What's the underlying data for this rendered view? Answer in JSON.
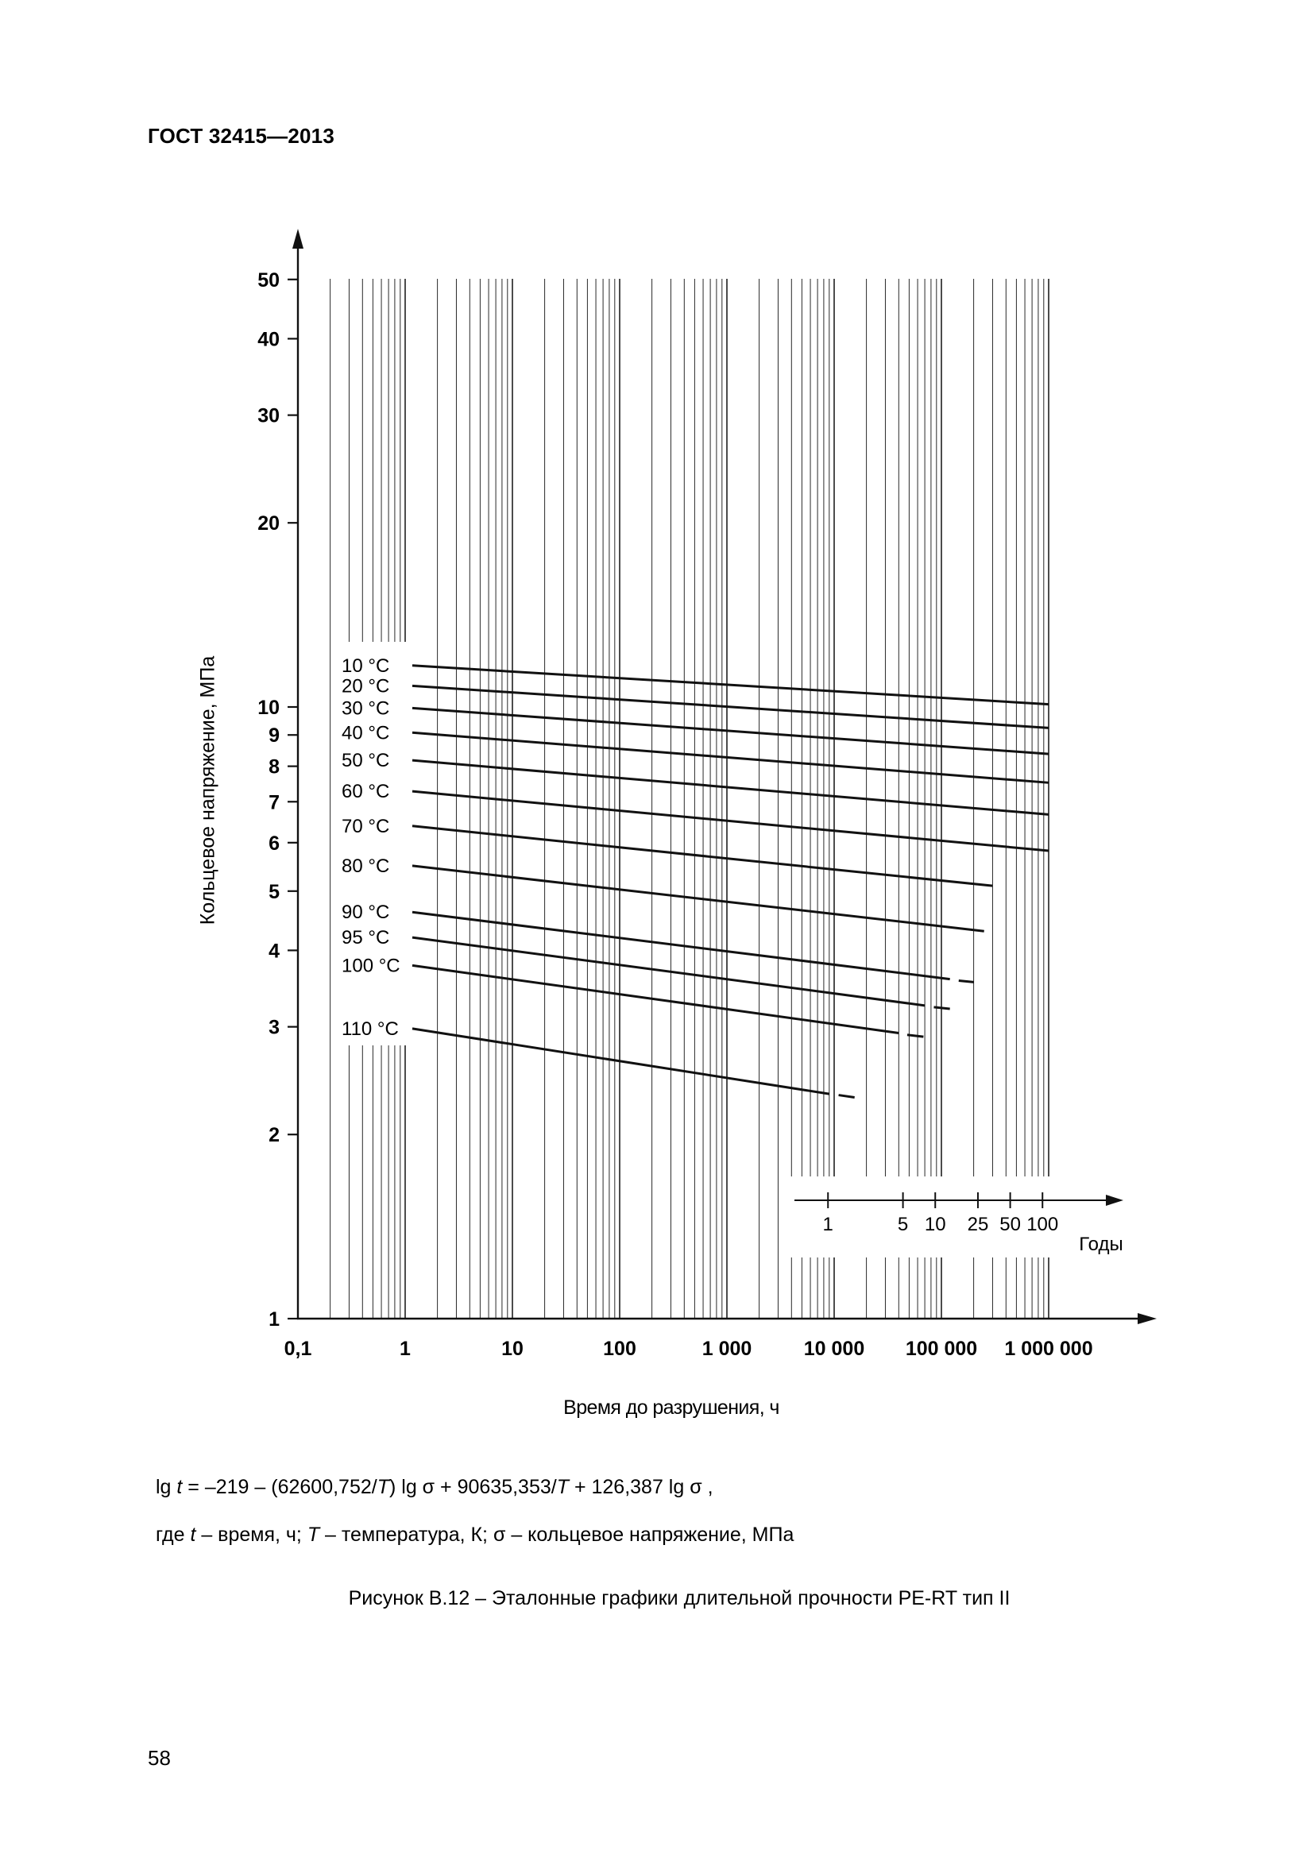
{
  "page": {
    "header": "ГОСТ 32415—2013",
    "page_number": "58",
    "formula_parts": [
      {
        "text": "lg "
      },
      {
        "text": "t",
        "italic": true
      },
      {
        "text": " = –219 – (62600,752/"
      },
      {
        "text": "T",
        "italic": true
      },
      {
        "text": ") lg σ + 90635,353/"
      },
      {
        "text": "T",
        "italic": true
      },
      {
        "text": " + 126,387 lg σ ,"
      }
    ],
    "where_parts": [
      {
        "text": "где "
      },
      {
        "text": "t",
        "italic": true
      },
      {
        "text": " – время, ч; "
      },
      {
        "text": "T",
        "italic": true
      },
      {
        "text": " – температура, К; σ – кольцевое напряжение, МПа"
      }
    ],
    "caption": "Рисунок В.12 – Эталонные графики длительной прочности PE-RT тип II"
  },
  "chart_data": {
    "type": "line",
    "title": "Эталонные графики длительной прочности PE-RT тип II",
    "x_axis": {
      "label": "Время до разрушения, ч",
      "scale": "log",
      "ticks": [
        0.1,
        1,
        10,
        100,
        1000,
        10000,
        100000,
        1000000
      ],
      "tick_labels": [
        "0,1",
        "1",
        "10",
        "100",
        "1 000",
        "10 000",
        "100 000",
        "1 000 000"
      ],
      "range": [
        0.1,
        2000000
      ]
    },
    "y_axis": {
      "label": "Кольцевое напряжение, МПа",
      "scale": "log",
      "ticks": [
        1,
        2,
        3,
        4,
        5,
        6,
        7,
        8,
        9,
        10,
        20,
        30,
        40,
        50
      ],
      "tick_labels": [
        "1",
        "2",
        "3",
        "4",
        "5",
        "6",
        "7",
        "8",
        "9",
        "10",
        "20",
        "30",
        "40",
        "50"
      ],
      "range": [
        1,
        50
      ]
    },
    "years_axis": {
      "label": "Годы",
      "ticks": [
        1,
        5,
        10,
        25,
        50,
        100
      ],
      "tick_labels": [
        "1",
        "5",
        "10",
        "25",
        "50",
        "100"
      ],
      "hours_per_year": 8760
    },
    "grid": "vertical-log-only",
    "series": [
      {
        "label": "10 °C",
        "solid": [
          [
            1,
            11.69
          ],
          [
            1000000,
            10.1
          ]
        ],
        "dash": null
      },
      {
        "label": "20 °C",
        "solid": [
          [
            1,
            10.83
          ],
          [
            1000000,
            9.24
          ]
        ],
        "dash": null
      },
      {
        "label": "30 °C",
        "solid": [
          [
            1,
            9.96
          ],
          [
            1000000,
            8.38
          ]
        ],
        "dash": null
      },
      {
        "label": "40 °C",
        "solid": [
          [
            1,
            9.08
          ],
          [
            1000000,
            7.52
          ]
        ],
        "dash": null
      },
      {
        "label": "50 °C",
        "solid": [
          [
            1,
            8.18
          ],
          [
            1000000,
            6.67
          ]
        ],
        "dash": null
      },
      {
        "label": "60 °C",
        "solid": [
          [
            1,
            7.28
          ],
          [
            1000000,
            5.82
          ]
        ],
        "dash": null
      },
      {
        "label": "70 °C",
        "solid": [
          [
            1,
            6.39
          ],
          [
            300000,
            5.1
          ]
        ],
        "dash": null
      },
      {
        "label": "80 °C",
        "solid": [
          [
            1,
            5.5
          ],
          [
            250000,
            4.3
          ]
        ],
        "dash": null
      },
      {
        "label": "90 °C",
        "solid": [
          [
            1,
            4.62
          ],
          [
            120000,
            3.59
          ]
        ],
        "dash": [
          [
            145000,
            3.57
          ],
          [
            200000,
            3.55
          ]
        ]
      },
      {
        "label": "95 °C",
        "solid": [
          [
            1,
            4.2
          ],
          [
            70000,
            3.25
          ]
        ],
        "dash": [
          [
            85000,
            3.23
          ],
          [
            120000,
            3.21
          ]
        ]
      },
      {
        "label": "100 °C",
        "solid": [
          [
            1,
            3.78
          ],
          [
            40000,
            2.93
          ]
        ],
        "dash": [
          [
            48000,
            2.91
          ],
          [
            68000,
            2.89
          ]
        ]
      },
      {
        "label": "110 °C",
        "solid": [
          [
            1,
            2.98
          ],
          [
            9000,
            2.33
          ]
        ],
        "dash": [
          [
            11000,
            2.32
          ],
          [
            15500,
            2.3
          ]
        ]
      }
    ]
  }
}
